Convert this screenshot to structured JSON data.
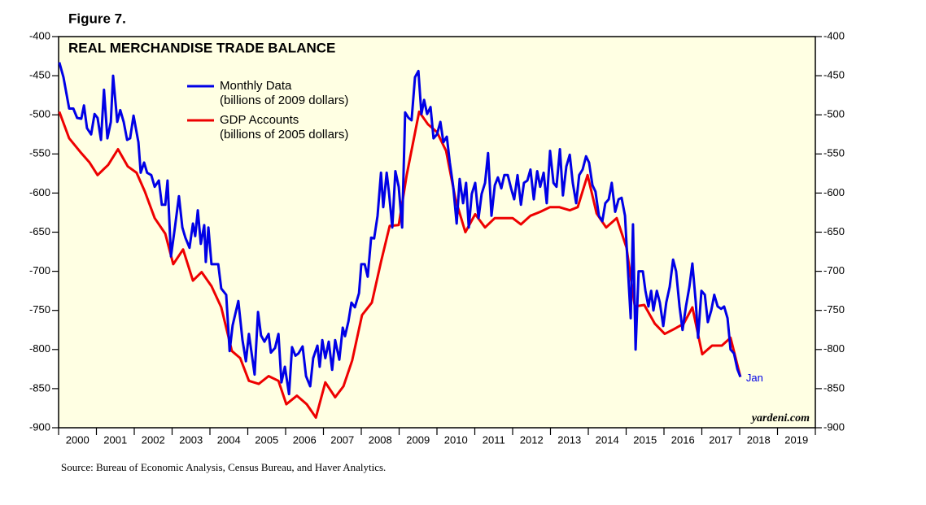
{
  "chart_data": {
    "type": "line",
    "figure_label": "Figure 7.",
    "title": "REAL MERCHANDISE TRADE BALANCE",
    "annotation": "Jan",
    "watermark": "yardeni.com",
    "source": "Source: Bureau of Economic Analysis, Census Bureau, and Haver Analytics.",
    "xlim": [
      2000,
      2020
    ],
    "xticks": [
      2000,
      2001,
      2002,
      2003,
      2004,
      2005,
      2006,
      2007,
      2008,
      2009,
      2010,
      2011,
      2012,
      2013,
      2014,
      2015,
      2016,
      2017,
      2018,
      2019
    ],
    "ylim": [
      -900,
      -400
    ],
    "yticks": [
      -400,
      -450,
      -500,
      -550,
      -600,
      -650,
      -700,
      -750,
      -800,
      -850,
      -900
    ],
    "y2lim": [
      -900,
      -400
    ],
    "y2ticks": [
      -400,
      -450,
      -500,
      -550,
      -600,
      -650,
      -700,
      -750,
      -800,
      -850,
      -900
    ],
    "series": [
      {
        "name": "Monthly Data",
        "unit": "(billions of 2009 dollars)",
        "color": "#0000e6",
        "x": [
          2000.02,
          2000.13,
          2000.28,
          2000.39,
          2000.49,
          2000.6,
          2000.67,
          2000.75,
          2000.86,
          2000.95,
          2001.03,
          2001.12,
          2001.2,
          2001.29,
          2001.38,
          2001.44,
          2001.55,
          2001.63,
          2001.72,
          2001.81,
          2001.89,
          2001.98,
          2002.11,
          2002.17,
          2002.26,
          2002.34,
          2002.45,
          2002.54,
          2002.65,
          2002.73,
          2002.82,
          2002.88,
          2002.97,
          2003.08,
          2003.18,
          2003.27,
          2003.35,
          2003.46,
          2003.55,
          2003.61,
          2003.68,
          2003.76,
          2003.85,
          2003.89,
          2003.96,
          2004.04,
          2004.22,
          2004.3,
          2004.43,
          2004.52,
          2004.6,
          2004.75,
          2004.86,
          2004.95,
          2005.03,
          2005.18,
          2005.27,
          2005.35,
          2005.44,
          2005.55,
          2005.61,
          2005.72,
          2005.81,
          2005.89,
          2005.98,
          2006.09,
          2006.17,
          2006.26,
          2006.34,
          2006.45,
          2006.54,
          2006.65,
          2006.73,
          2006.84,
          2006.9,
          2006.97,
          2007.05,
          2007.14,
          2007.23,
          2007.31,
          2007.42,
          2007.51,
          2007.57,
          2007.66,
          2007.74,
          2007.83,
          2007.94,
          2008.0,
          2008.09,
          2008.17,
          2008.26,
          2008.34,
          2008.43,
          2008.52,
          2008.58,
          2008.67,
          2008.73,
          2008.82,
          2008.9,
          2008.99,
          2009.08,
          2009.16,
          2009.25,
          2009.33,
          2009.42,
          2009.51,
          2009.59,
          2009.66,
          2009.74,
          2009.83,
          2009.91,
          2010.0,
          2010.09,
          2010.17,
          2010.26,
          2010.34,
          2010.43,
          2010.52,
          2010.6,
          2010.69,
          2010.77,
          2010.84,
          2010.92,
          2011.01,
          2011.1,
          2011.18,
          2011.27,
          2011.35,
          2011.44,
          2011.53,
          2011.61,
          2011.7,
          2011.78,
          2011.87,
          2011.96,
          2012.04,
          2012.13,
          2012.22,
          2012.3,
          2012.39,
          2012.47,
          2012.56,
          2012.65,
          2012.73,
          2012.82,
          2012.9,
          2012.99,
          2013.08,
          2013.16,
          2013.25,
          2013.33,
          2013.42,
          2013.51,
          2013.59,
          2013.68,
          2013.76,
          2013.85,
          2013.94,
          2014.02,
          2014.11,
          2014.19,
          2014.28,
          2014.37,
          2014.45,
          2014.54,
          2014.62,
          2014.71,
          2014.8,
          2014.88,
          2014.97,
          2015.05,
          2015.12,
          2015.18,
          2015.25,
          2015.33,
          2015.44,
          2015.51,
          2015.59,
          2015.66,
          2015.72,
          2015.81,
          2015.89,
          2015.98,
          2016.06,
          2016.15,
          2016.24,
          2016.32,
          2016.41,
          2016.49,
          2016.58,
          2016.67,
          2016.75,
          2016.84,
          2016.9,
          2016.99,
          2017.08,
          2017.16,
          2017.25,
          2017.33,
          2017.42,
          2017.51,
          2017.59,
          2017.68,
          2017.76,
          2017.85,
          2017.94,
          2018.02
        ],
        "values": [
          -433,
          -452,
          -492,
          -492,
          -504,
          -505,
          -488,
          -517,
          -525,
          -499,
          -504,
          -532,
          -468,
          -530,
          -509,
          -450,
          -509,
          -494,
          -509,
          -532,
          -530,
          -501,
          -535,
          -574,
          -561,
          -574,
          -577,
          -592,
          -584,
          -615,
          -615,
          -584,
          -681,
          -642,
          -604,
          -644,
          -657,
          -670,
          -639,
          -655,
          -622,
          -665,
          -641,
          -688,
          -644,
          -691,
          -691,
          -722,
          -730,
          -802,
          -769,
          -738,
          -788,
          -815,
          -780,
          -832,
          -752,
          -782,
          -790,
          -780,
          -804,
          -798,
          -780,
          -842,
          -822,
          -857,
          -797,
          -808,
          -805,
          -796,
          -834,
          -847,
          -811,
          -795,
          -822,
          -788,
          -811,
          -790,
          -826,
          -788,
          -813,
          -772,
          -783,
          -764,
          -740,
          -746,
          -728,
          -691,
          -691,
          -707,
          -657,
          -658,
          -629,
          -574,
          -618,
          -574,
          -598,
          -644,
          -572,
          -592,
          -644,
          -497,
          -504,
          -507,
          -452,
          -444,
          -499,
          -481,
          -499,
          -490,
          -530,
          -525,
          -509,
          -535,
          -528,
          -561,
          -592,
          -639,
          -582,
          -613,
          -587,
          -644,
          -601,
          -587,
          -632,
          -601,
          -587,
          -549,
          -629,
          -590,
          -580,
          -594,
          -577,
          -577,
          -594,
          -608,
          -577,
          -615,
          -587,
          -584,
          -570,
          -608,
          -572,
          -592,
          -574,
          -613,
          -546,
          -587,
          -592,
          -544,
          -603,
          -566,
          -551,
          -587,
          -613,
          -577,
          -570,
          -553,
          -561,
          -590,
          -598,
          -629,
          -636,
          -613,
          -608,
          -587,
          -624,
          -608,
          -606,
          -629,
          -700,
          -760,
          -640,
          -800,
          -700,
          -700,
          -725,
          -745,
          -725,
          -750,
          -725,
          -740,
          -770,
          -740,
          -720,
          -685,
          -700,
          -745,
          -775,
          -745,
          -720,
          -690,
          -740,
          -785,
          -725,
          -730,
          -765,
          -750,
          -730,
          -745,
          -748,
          -745,
          -760,
          -800,
          -805,
          -825,
          -835
        ]
      },
      {
        "name": "GDP Accounts",
        "unit": "(billions of 2005 dollars)",
        "color": "#ee0000",
        "x": [
          2000.02,
          2000.28,
          2000.6,
          2000.82,
          2001.03,
          2001.31,
          2001.57,
          2001.83,
          2002.06,
          2002.28,
          2002.54,
          2002.82,
          2003.03,
          2003.29,
          2003.55,
          2003.78,
          2004.04,
          2004.3,
          2004.58,
          2004.8,
          2005.03,
          2005.29,
          2005.55,
          2005.81,
          2006.02,
          2006.3,
          2006.56,
          2006.8,
          2007.05,
          2007.31,
          2007.53,
          2007.76,
          2008.02,
          2008.28,
          2008.52,
          2008.75,
          2008.99,
          2009.2,
          2009.53,
          2009.76,
          2010.0,
          2010.24,
          2010.49,
          2010.75,
          2011.01,
          2011.27,
          2011.53,
          2012.0,
          2012.22,
          2012.47,
          2012.73,
          2012.99,
          2013.23,
          2013.51,
          2013.72,
          2013.98,
          2014.22,
          2014.47,
          2014.75,
          2015.01,
          2015.23,
          2015.48,
          2015.76,
          2016.02,
          2016.26,
          2016.52,
          2016.75,
          2017.01,
          2017.27,
          2017.53,
          2017.76,
          2018.02
        ],
        "values": [
          -496,
          -530,
          -549,
          -561,
          -577,
          -564,
          -544,
          -566,
          -574,
          -598,
          -632,
          -652,
          -691,
          -672,
          -712,
          -701,
          -719,
          -746,
          -802,
          -811,
          -840,
          -844,
          -834,
          -840,
          -870,
          -859,
          -870,
          -887,
          -842,
          -861,
          -847,
          -814,
          -756,
          -740,
          -688,
          -642,
          -641,
          -577,
          -496,
          -512,
          -522,
          -546,
          -608,
          -650,
          -627,
          -644,
          -632,
          -632,
          -640,
          -629,
          -624,
          -618,
          -618,
          -622,
          -618,
          -577,
          -626,
          -644,
          -632,
          -670,
          -745,
          -743,
          -767,
          -780,
          -774,
          -767,
          -746,
          -806,
          -795,
          -795,
          -785,
          -835
        ]
      }
    ]
  }
}
